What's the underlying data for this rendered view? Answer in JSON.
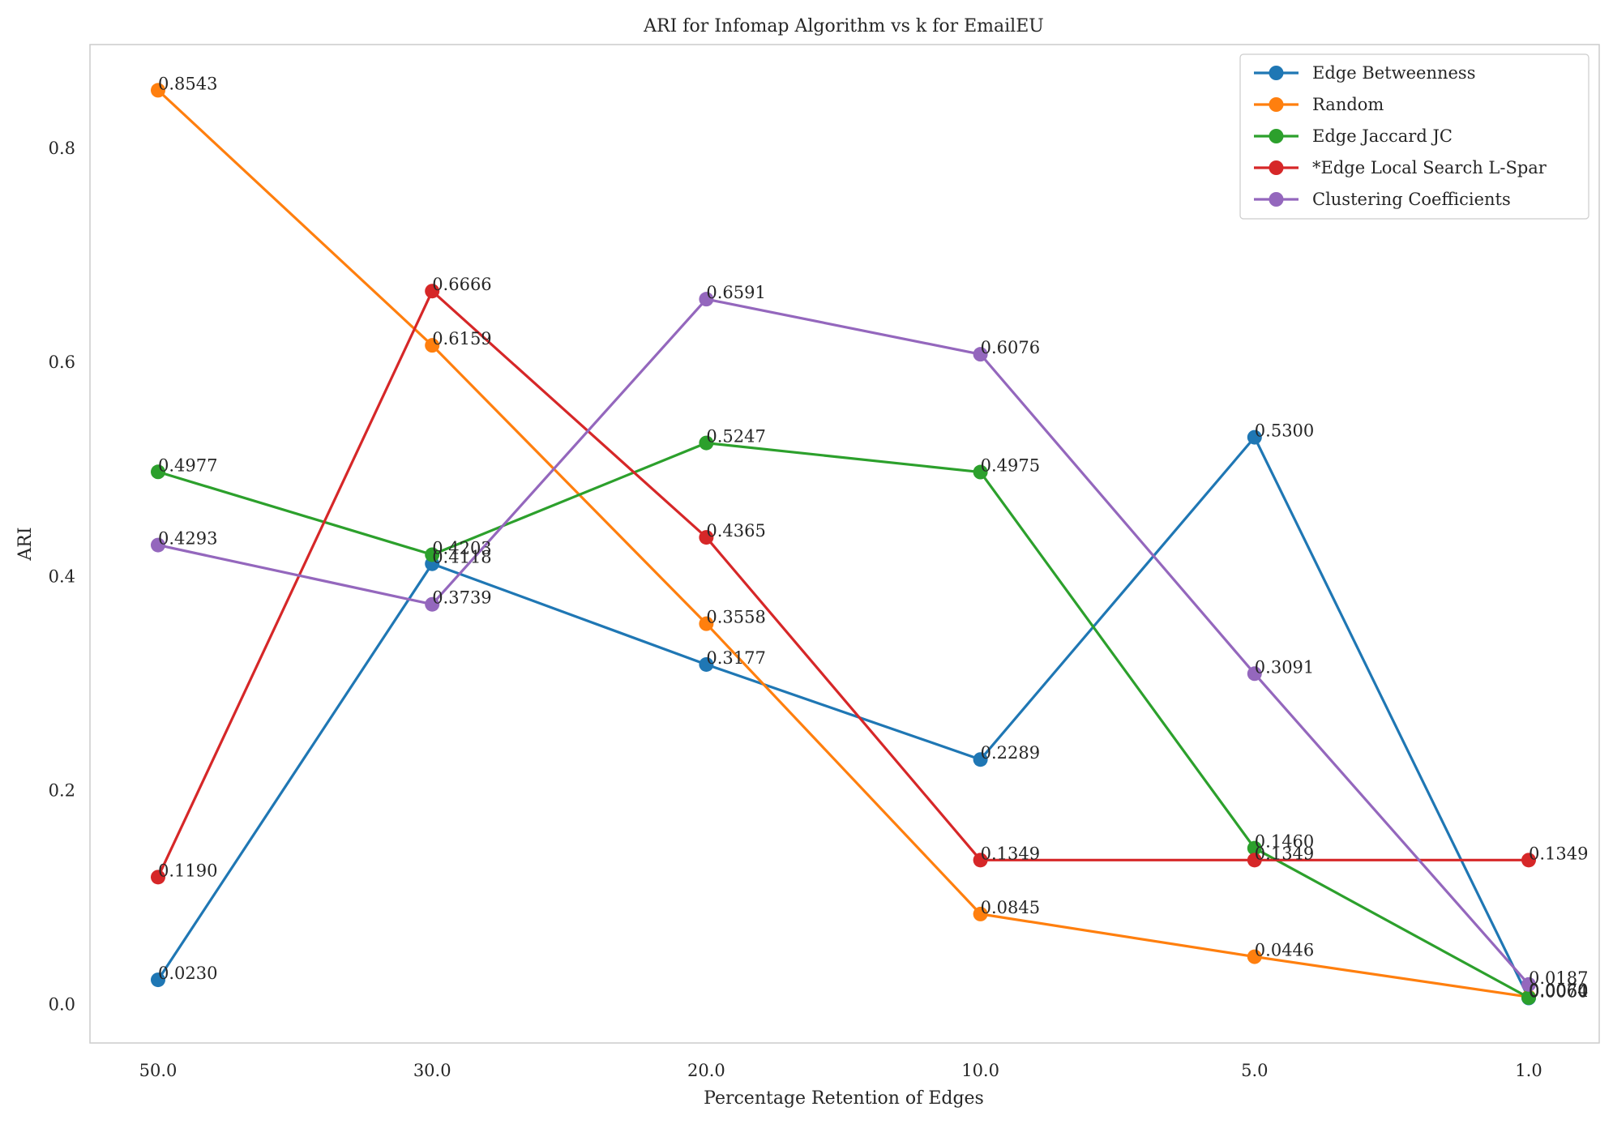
{
  "chart_data": {
    "type": "line",
    "title": "ARI for Infomap Algorithm vs k for EmailEU",
    "xlabel": "Percentage Retention of Edges",
    "ylabel": "ARI",
    "categories": [
      "50.0",
      "30.0",
      "20.0",
      "10.0",
      "5.0",
      "1.0"
    ],
    "ylim": [
      -0.036,
      0.897
    ],
    "yticks": [
      0.0,
      0.2,
      0.4,
      0.6,
      0.8
    ],
    "ytick_labels": [
      "0.0",
      "0.2",
      "0.4",
      "0.6",
      "0.8"
    ],
    "grid": false,
    "legend_position": "top-right",
    "series": [
      {
        "name": "Edge Betweenness",
        "color": "#1f77b4",
        "values": [
          0.023,
          0.4118,
          0.3177,
          0.2289,
          0.53,
          0.006
        ],
        "labels": [
          "0.0230",
          "0.4118",
          "0.3177",
          "0.2289",
          "0.5300",
          "0.0060"
        ]
      },
      {
        "name": "Random",
        "color": "#ff7f0e",
        "values": [
          0.8543,
          0.6159,
          0.3558,
          0.0845,
          0.0446,
          0.007
        ],
        "labels": [
          "0.8543",
          "0.6159",
          "0.3558",
          "0.0845",
          "0.0446",
          "0.0070"
        ]
      },
      {
        "name": "Edge Jaccard JC",
        "color": "#2ca02c",
        "values": [
          0.4977,
          0.4203,
          0.5247,
          0.4975,
          0.146,
          0.0064
        ],
        "labels": [
          "0.4977",
          "0.4203",
          "0.5247",
          "0.4975",
          "0.1460",
          "0.0064"
        ]
      },
      {
        "name": "*Edge Local Search L-Spar",
        "color": "#d62728",
        "values": [
          0.119,
          0.6666,
          0.4365,
          0.1349,
          0.1349,
          0.1349
        ],
        "labels": [
          "0.1190",
          "0.6666",
          "0.4365",
          "0.1349",
          "0.1349",
          "0.1349"
        ]
      },
      {
        "name": "Clustering Coefficients",
        "color": "#9467bd",
        "values": [
          0.4293,
          0.3739,
          0.6591,
          0.6076,
          0.3091,
          0.0187
        ],
        "labels": [
          "0.4293",
          "0.3739",
          "0.6591",
          "0.6076",
          "0.3091",
          "0.0187"
        ]
      }
    ]
  }
}
